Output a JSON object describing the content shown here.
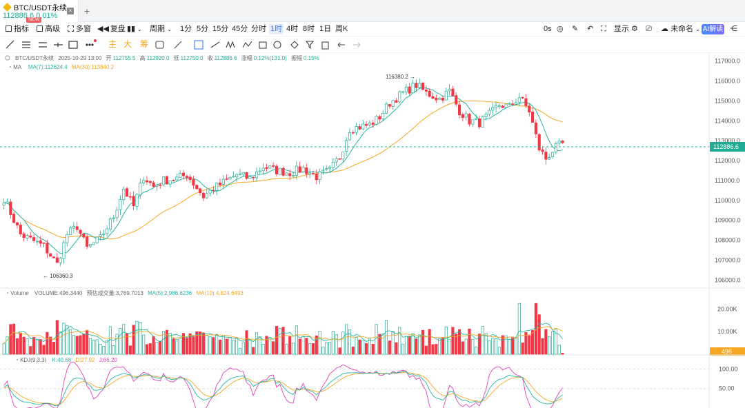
{
  "tab": {
    "title": "BTC/USDT永续",
    "price": "112886.6",
    "change": "0.01%",
    "badge": "NEW",
    "close": "×",
    "add": "+"
  },
  "toolbar": {
    "indicators": "指标",
    "advanced": "高级",
    "multi": "多窗",
    "replay": "复盘",
    "period": "周期",
    "timeframes": [
      "1分",
      "5分",
      "15分",
      "45分",
      "分时",
      "1时",
      "4时",
      "8时",
      "1日",
      "周K"
    ],
    "active_timeframe": "1时",
    "countdown": "0s",
    "display": "显示",
    "layout_name": "未命名",
    "ai": "AI解读"
  },
  "draw_tools": {
    "main": "主",
    "big": "大",
    "chip": "筹"
  },
  "legend": {
    "ohlc": {
      "symbol": "BTC/USDT永续",
      "time": "2025-10-29 13:00",
      "open_label": "开",
      "open": "112755.5",
      "high_label": "高",
      "high": "112920.0",
      "low_label": "低",
      "low": "112750.0",
      "close_label": "收",
      "close": "112886.6",
      "chg_label": "涨幅",
      "chg": "0.12%(131.0)",
      "amp_label": "振幅",
      "amp": "0.15%"
    },
    "ma": {
      "name": "MA",
      "ma7": "MA(7):112624.4",
      "ma30": "MA(30):113840.2"
    },
    "volume": {
      "name": "Volume",
      "vol": "VOLUME:496.3440",
      "est": "预估成交量:3,769.7013",
      "ma5": "MA(5):2,986.6236",
      "ma10": "MA(10):4,824.6493"
    },
    "kdj": {
      "name": "KDJ(9,3,3)",
      "k": "K:40.68",
      "d": "D:27.92",
      "j": "J:66.20"
    }
  },
  "markers": {
    "high": "116380.2",
    "low": "106360.3",
    "last_price": "112886.6",
    "last_volume": "496"
  },
  "price_axis": [
    "117000.0",
    "116000.0",
    "115000.0",
    "114000.0",
    "113000.0",
    "112000.0",
    "111000.0",
    "110000.0",
    "109000.0",
    "108000.0",
    "107000.0",
    "106000.0"
  ],
  "volume_axis": [
    "20.00K",
    "10.00K"
  ],
  "kdj_axis": [
    "100.00",
    "50.00"
  ],
  "colors": {
    "up": "#22ab94",
    "down": "#f23645",
    "ma7": "#26b6a0",
    "ma30": "#f5a623",
    "k": "#26b6a0",
    "d": "#f5a623",
    "j": "#e040c0",
    "accent": "#3f7cf5"
  },
  "chart_data": {
    "type": "candlestick",
    "price_range": [
      105600,
      117400
    ],
    "anchors": [
      [
        0,
        110100
      ],
      [
        5,
        108300
      ],
      [
        12,
        107700
      ],
      [
        16,
        106800
      ],
      [
        19,
        108300
      ],
      [
        22,
        108700
      ],
      [
        25,
        107600
      ],
      [
        29,
        108100
      ],
      [
        33,
        109200
      ],
      [
        36,
        110600
      ],
      [
        39,
        109700
      ],
      [
        42,
        111200
      ],
      [
        45,
        110700
      ],
      [
        48,
        111000
      ],
      [
        52,
        111100
      ],
      [
        55,
        111300
      ],
      [
        60,
        110200
      ],
      [
        63,
        110600
      ],
      [
        67,
        111000
      ],
      [
        70,
        111300
      ],
      [
        74,
        111100
      ],
      [
        78,
        111700
      ],
      [
        82,
        111500
      ],
      [
        86,
        111400
      ],
      [
        90,
        111600
      ],
      [
        94,
        111200
      ],
      [
        98,
        111500
      ],
      [
        101,
        112200
      ],
      [
        104,
        113600
      ],
      [
        107,
        113700
      ],
      [
        110,
        113800
      ],
      [
        113,
        114200
      ],
      [
        116,
        114900
      ],
      [
        120,
        115400
      ],
      [
        124,
        115800
      ],
      [
        127,
        115400
      ],
      [
        131,
        115100
      ],
      [
        134,
        115500
      ],
      [
        137,
        114500
      ],
      [
        140,
        114000
      ],
      [
        143,
        113900
      ],
      [
        146,
        114300
      ],
      [
        149,
        114800
      ],
      [
        152,
        114700
      ],
      [
        155,
        115200
      ],
      [
        158,
        114500
      ],
      [
        161,
        112600
      ],
      [
        163,
        112100
      ],
      [
        165,
        112500
      ],
      [
        168,
        112900
      ]
    ],
    "candle_count": 169,
    "volume_range": [
      0,
      25000
    ],
    "kdj_range": [
      0,
      115
    ]
  }
}
